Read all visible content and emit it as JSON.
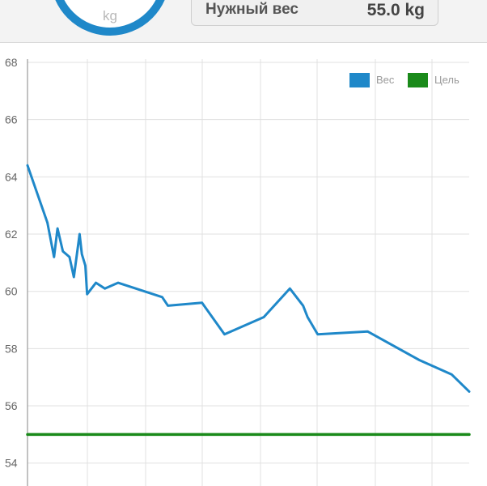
{
  "header": {
    "ring_unit": "kg",
    "target_label": "Нужный вес",
    "target_value": "55.0 kg"
  },
  "colors": {
    "weight": "#1f88c9",
    "goal": "#1a8a1a",
    "grid": "#e0e0e0"
  },
  "chart_data": {
    "type": "line",
    "ylim": [
      53.2,
      68
    ],
    "yticks": [
      54,
      56,
      58,
      60,
      62,
      64,
      66,
      68
    ],
    "grid": true,
    "legend_position": "top-right",
    "series": [
      {
        "name": "Вес",
        "color": "#1f88c9",
        "points": [
          [
            0,
            64.4
          ],
          [
            4.5,
            62.4
          ],
          [
            6.0,
            61.2
          ],
          [
            6.8,
            62.2
          ],
          [
            8.0,
            61.4
          ],
          [
            9.5,
            61.2
          ],
          [
            10.5,
            60.5
          ],
          [
            11.8,
            62.0
          ],
          [
            12.3,
            61.3
          ],
          [
            13.1,
            60.9
          ],
          [
            13.5,
            59.9
          ],
          [
            15.5,
            60.3
          ],
          [
            17.5,
            60.1
          ],
          [
            20.5,
            60.3
          ],
          [
            30.5,
            59.8
          ],
          [
            31.8,
            59.5
          ],
          [
            39.5,
            59.6
          ],
          [
            44.6,
            58.5
          ],
          [
            53.5,
            59.1
          ],
          [
            59.4,
            60.1
          ],
          [
            62.4,
            59.5
          ],
          [
            63.4,
            59.1
          ],
          [
            65.7,
            58.5
          ],
          [
            77.0,
            58.6
          ],
          [
            88.7,
            57.6
          ],
          [
            96.0,
            57.1
          ],
          [
            98.0,
            56.8
          ],
          [
            100,
            56.5
          ]
        ]
      },
      {
        "name": "Цель",
        "color": "#1a8a1a",
        "points": [
          [
            0,
            55.0
          ],
          [
            100,
            55.0
          ]
        ]
      }
    ]
  }
}
